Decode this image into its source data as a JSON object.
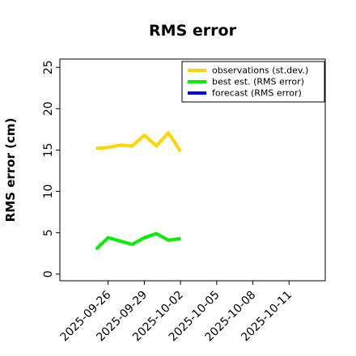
{
  "chart_data": {
    "type": "line",
    "title": "RMS error",
    "xlabel": "",
    "ylabel": "RMS error (cm)",
    "ylim": [
      -0.8,
      26
    ],
    "xlim": [
      "2025-09-22T00:00",
      "2025-10-14T00:00"
    ],
    "yticks": [
      0,
      5,
      10,
      15,
      20,
      25
    ],
    "xticks": [
      "2025-09-26",
      "2025-09-29",
      "2025-10-02",
      "2025-10-05",
      "2025-10-08",
      "2025-10-11"
    ],
    "highlight_tick": "2025-10-02",
    "highlight_color": "#228b22",
    "legend_position": "top-right",
    "grid": false,
    "series": [
      {
        "name": "observations (st.dev.)",
        "color": "#ffd700",
        "x": [
          "2025-09-25",
          "2025-09-26",
          "2025-09-27",
          "2025-09-28",
          "2025-09-29",
          "2025-09-30",
          "2025-10-01",
          "2025-10-02"
        ],
        "values": [
          15.2,
          15.3,
          15.6,
          15.5,
          16.8,
          15.5,
          17.1,
          14.8
        ]
      },
      {
        "name": "best est. (RMS error)",
        "color": "#00ee00",
        "x": [
          "2025-09-25",
          "2025-09-26",
          "2025-09-27",
          "2025-09-28",
          "2025-09-29",
          "2025-09-30",
          "2025-10-01",
          "2025-10-02"
        ],
        "values": [
          3.0,
          4.4,
          4.0,
          3.6,
          4.4,
          4.9,
          4.1,
          4.3
        ]
      },
      {
        "name": "forecast (RMS error)",
        "color": "#0000ff",
        "x": [],
        "values": []
      }
    ]
  }
}
